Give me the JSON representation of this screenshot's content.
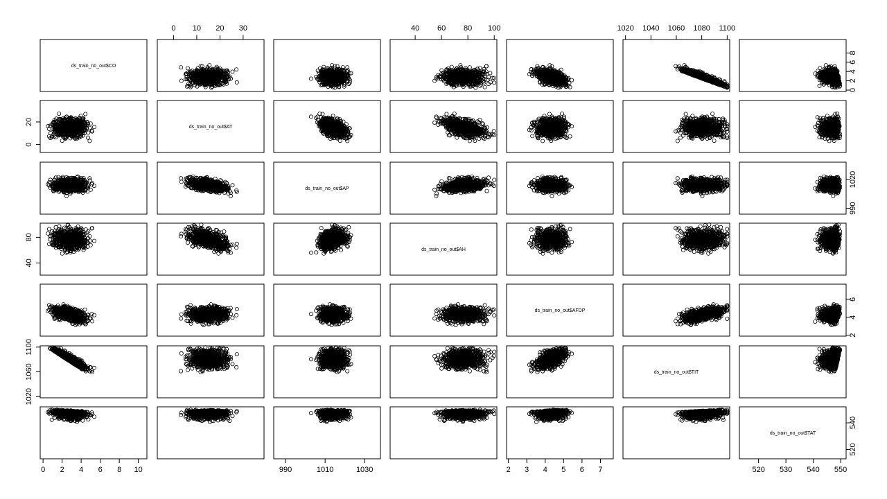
{
  "chart_data": {
    "type": "scatter",
    "subtype": "pairs-matrix",
    "grid": false,
    "background": "#ffffff",
    "point_color": "#000000",
    "variables": [
      {
        "key": "CO",
        "label": "ds_train_no_out$CO",
        "range": [
          -0.3,
          10.9
        ],
        "ticks": [
          0,
          2,
          4,
          6,
          8,
          10
        ],
        "tick_side": "bottom"
      },
      {
        "key": "AT",
        "label": "ds_train_no_out$AT",
        "range": [
          -7,
          39
        ],
        "ticks": [
          0,
          10,
          20,
          30
        ],
        "tick_side": "top"
      },
      {
        "key": "AP",
        "label": "ds_train_no_out$AP",
        "range": [
          984,
          1038
        ],
        "ticks": [
          990,
          1010,
          1030
        ],
        "tick_side": "bottom"
      },
      {
        "key": "AH",
        "label": "ds_train_no_out$AH",
        "range": [
          21,
          102
        ],
        "ticks": [
          40,
          60,
          80,
          100
        ],
        "tick_side": "top"
      },
      {
        "key": "AFDP",
        "label": "ds_train_no_out$AFDP",
        "range": [
          1.9,
          7.7
        ],
        "ticks": [
          2,
          3,
          4,
          5,
          6,
          7
        ],
        "tick_side": "bottom"
      },
      {
        "key": "TIT",
        "label": "ds_train_no_out$TIT",
        "range": [
          1018,
          1102
        ],
        "ticks": [
          1020,
          1040,
          1060,
          1080,
          1100
        ],
        "tick_side": "top"
      },
      {
        "key": "TAT",
        "label": "ds_train_no_out$TAT",
        "range": [
          513,
          552
        ],
        "ticks": [
          520,
          530,
          540,
          550
        ],
        "tick_side": "bottom"
      }
    ],
    "left_axis_ticks": [
      {
        "key": "AT",
        "ticks": [
          0,
          20
        ]
      },
      {
        "key": "AH",
        "ticks": [
          40,
          80
        ]
      },
      {
        "key": "TIT",
        "ticks": [
          1020,
          1060,
          1100
        ]
      }
    ],
    "right_axis_ticks": [
      {
        "key": "CO",
        "ticks": [
          0,
          2,
          4,
          6,
          8
        ]
      },
      {
        "key": "AP",
        "ticks": [
          990,
          1020
        ]
      },
      {
        "key": "AFDP",
        "ticks": [
          2,
          4,
          6
        ]
      },
      {
        "key": "TAT",
        "ticks": [
          520,
          540
        ]
      }
    ]
  }
}
